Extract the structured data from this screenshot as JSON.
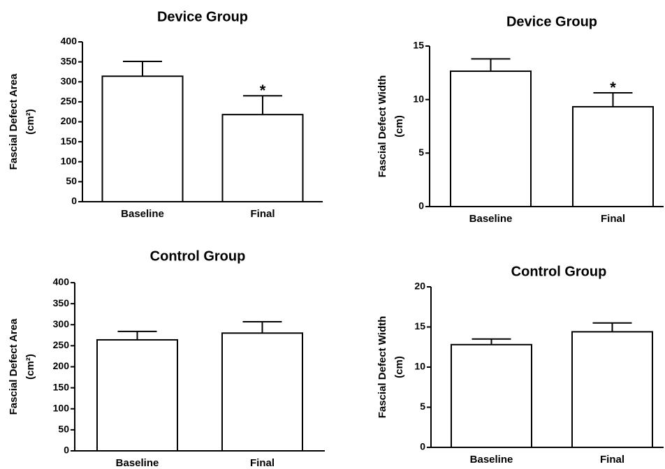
{
  "chart_data": [
    {
      "type": "bar",
      "title": "Device Group",
      "ylabel": [
        "Fascial Defect Area",
        "(cm²)"
      ],
      "categories": [
        "Baseline",
        "Final"
      ],
      "values": [
        314,
        218
      ],
      "errors": [
        37,
        47
      ],
      "annotations": [
        {
          "category": "Final",
          "text": "*"
        }
      ],
      "ylim": [
        0,
        400
      ],
      "yticks": [
        0,
        50,
        100,
        150,
        200,
        250,
        300,
        350,
        400
      ],
      "color": "#ffffff"
    },
    {
      "type": "bar",
      "title": "Device Group",
      "ylabel": [
        "Fascial Defect Width",
        "(cm)"
      ],
      "categories": [
        "Baseline",
        "Final"
      ],
      "values": [
        12.65,
        9.33
      ],
      "errors": [
        1.15,
        1.3
      ],
      "annotations": [
        {
          "category": "Final",
          "text": "*"
        }
      ],
      "ylim": [
        0,
        15
      ],
      "yticks": [
        0,
        5,
        10,
        15
      ],
      "color": "#ffffff"
    },
    {
      "type": "bar",
      "title": "Control Group",
      "ylabel": [
        "Fascial Defect Area",
        "(cm²)"
      ],
      "categories": [
        "Baseline",
        "Final"
      ],
      "values": [
        264,
        280
      ],
      "errors": [
        20,
        27
      ],
      "ylim": [
        0,
        400
      ],
      "yticks": [
        0,
        50,
        100,
        150,
        200,
        250,
        300,
        350,
        400
      ],
      "color": "#ffffff"
    },
    {
      "type": "bar",
      "title": "Control Group",
      "ylabel": [
        "Fascial Defect Width",
        "(cm)"
      ],
      "categories": [
        "Baseline",
        "Final"
      ],
      "values": [
        12.8,
        14.4
      ],
      "errors": [
        0.7,
        1.1
      ],
      "ylim": [
        0,
        20
      ],
      "yticks": [
        0,
        5,
        10,
        15,
        20
      ],
      "color": "#ffffff"
    }
  ]
}
